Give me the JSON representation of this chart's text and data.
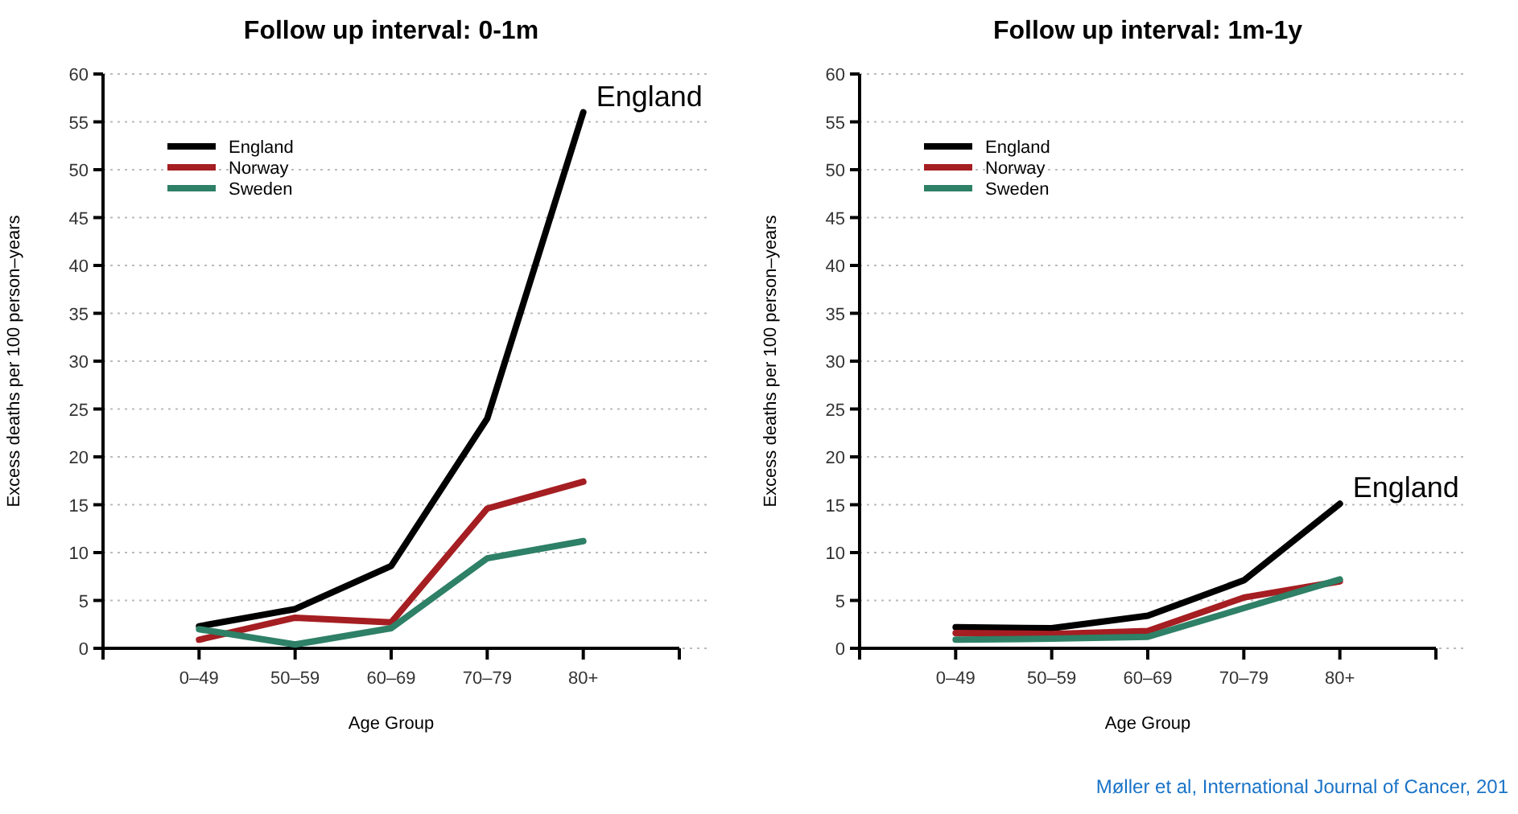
{
  "chart_data": [
    {
      "type": "line",
      "title": "Follow up interval: 0-1m",
      "xlabel": "Age Group",
      "ylabel": "Excess deaths per 100 person–years",
      "categories": [
        "0–49",
        "50–59",
        "60–69",
        "70–79",
        "80+"
      ],
      "series": [
        {
          "name": "England",
          "color": "#000000",
          "values": [
            2.3,
            4.1,
            8.6,
            24,
            56
          ]
        },
        {
          "name": "Norway",
          "color": "#a51e22",
          "values": [
            0.9,
            3.2,
            2.7,
            14.6,
            17.4
          ]
        },
        {
          "name": "Sweden",
          "color": "#2e8066",
          "values": [
            2.0,
            0.4,
            2.1,
            9.4,
            11.2
          ]
        }
      ],
      "ylim": [
        0,
        60
      ],
      "yticks": [
        0,
        5,
        10,
        15,
        20,
        25,
        30,
        35,
        40,
        45,
        50,
        55,
        60
      ],
      "grid": "y",
      "legend": "top left",
      "line_style": "solid",
      "annotations": [
        {
          "text": "England",
          "x": "80+",
          "y": 56
        }
      ]
    },
    {
      "type": "line",
      "title": "Follow up interval: 1m-1y",
      "xlabel": "Age Group",
      "ylabel": "Excess deaths per 100 person–years",
      "categories": [
        "0–49",
        "50–59",
        "60–69",
        "70–79",
        "80+"
      ],
      "series": [
        {
          "name": "England",
          "color": "#000000",
          "values": [
            2.2,
            2.1,
            3.4,
            7.1,
            15.1
          ]
        },
        {
          "name": "Norway",
          "color": "#a51e22",
          "values": [
            1.6,
            1.5,
            1.8,
            5.3,
            7.0
          ]
        },
        {
          "name": "Sweden",
          "color": "#2e8066",
          "values": [
            0.9,
            1.0,
            1.2,
            4.2,
            7.2
          ]
        }
      ],
      "ylim": [
        0,
        60
      ],
      "yticks": [
        0,
        5,
        10,
        15,
        20,
        25,
        30,
        35,
        40,
        45,
        50,
        55,
        60
      ],
      "grid": "y",
      "legend": "top left",
      "line_style": "solid",
      "annotations": [
        {
          "text": "England",
          "x": "80+",
          "y": 15.1
        },
        "Møller et al, International Journal of Cancer, 201"
      ]
    }
  ]
}
